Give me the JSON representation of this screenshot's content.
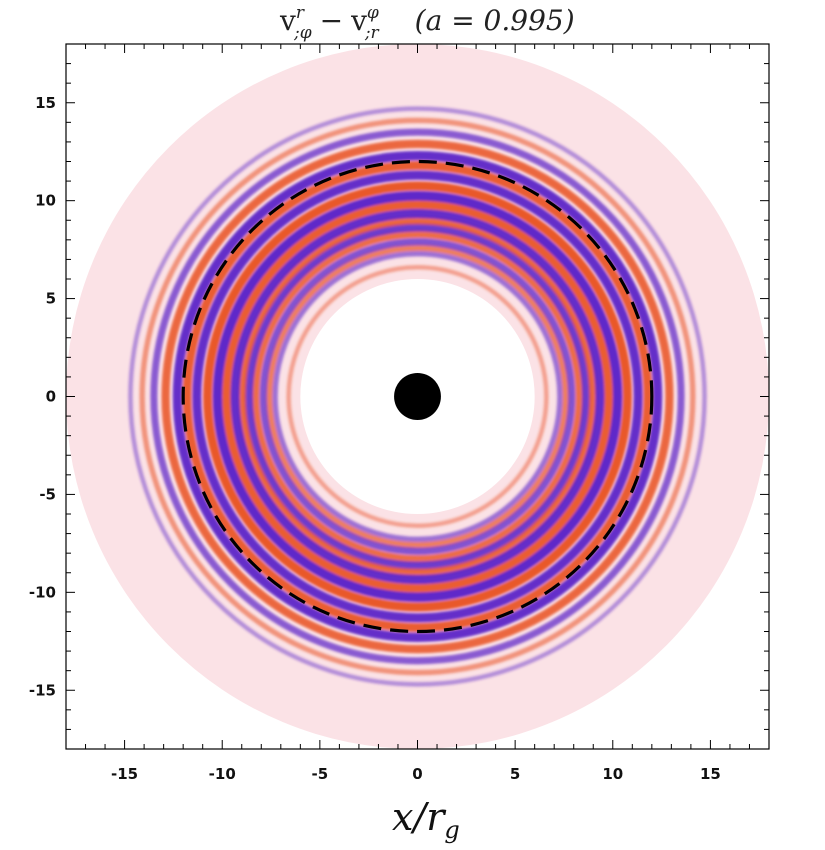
{
  "chart_data": {
    "type": "heatmap",
    "title": {
      "term1_base": "v",
      "term1_sup": "r",
      "term1_sub": ";φ",
      "minus": "−",
      "term2_base": "v",
      "term2_sup": "φ",
      "term2_sub": ";r",
      "annotation": "(a = 0.995)"
    },
    "xlabel": "x/r",
    "xlabel_sub": "g",
    "ylabel": "",
    "xlim": [
      -18,
      18
    ],
    "ylim": [
      -18,
      18
    ],
    "x_ticks": [
      -15,
      -10,
      -5,
      0,
      5,
      10,
      15
    ],
    "y_ticks": [
      15,
      10,
      5,
      0,
      -5,
      -10,
      -15
    ],
    "x_tick_labels": [
      "-15",
      "-10",
      "-5",
      "0",
      "5",
      "10",
      "15"
    ],
    "y_tick_labels": [
      "15",
      "10",
      "5",
      "0",
      "-5",
      "-10",
      "-15"
    ],
    "disk": {
      "inner_radius": 6,
      "outer_radius": 18,
      "background_color": "#fbe2e6"
    },
    "black_hole_radius": 1.2,
    "reference_circle": {
      "radius": 12,
      "style": "dashed",
      "color": "#000000"
    },
    "colors": {
      "positive": "#e8501e",
      "negative": "#5a22c8",
      "zero": "#ffffff"
    },
    "bands": [
      {
        "r": 6.6,
        "value": 0.15
      },
      {
        "r": 7.3,
        "value": -0.35
      },
      {
        "r": 7.6,
        "value": 0.5
      },
      {
        "r": 7.9,
        "value": -0.6
      },
      {
        "r": 8.3,
        "value": 0.7
      },
      {
        "r": 8.65,
        "value": -0.8
      },
      {
        "r": 9.0,
        "value": 0.75
      },
      {
        "r": 9.35,
        "value": -0.9
      },
      {
        "r": 9.8,
        "value": 0.85
      },
      {
        "r": 10.25,
        "value": -0.95
      },
      {
        "r": 10.75,
        "value": 0.9
      },
      {
        "r": 11.3,
        "value": -0.9
      },
      {
        "r": 11.8,
        "value": 0.85
      },
      {
        "r": 12.3,
        "value": -0.9
      },
      {
        "r": 12.9,
        "value": 0.75
      },
      {
        "r": 13.5,
        "value": -0.55
      },
      {
        "r": 14.1,
        "value": 0.3
      },
      {
        "r": 14.7,
        "value": -0.15
      }
    ]
  }
}
